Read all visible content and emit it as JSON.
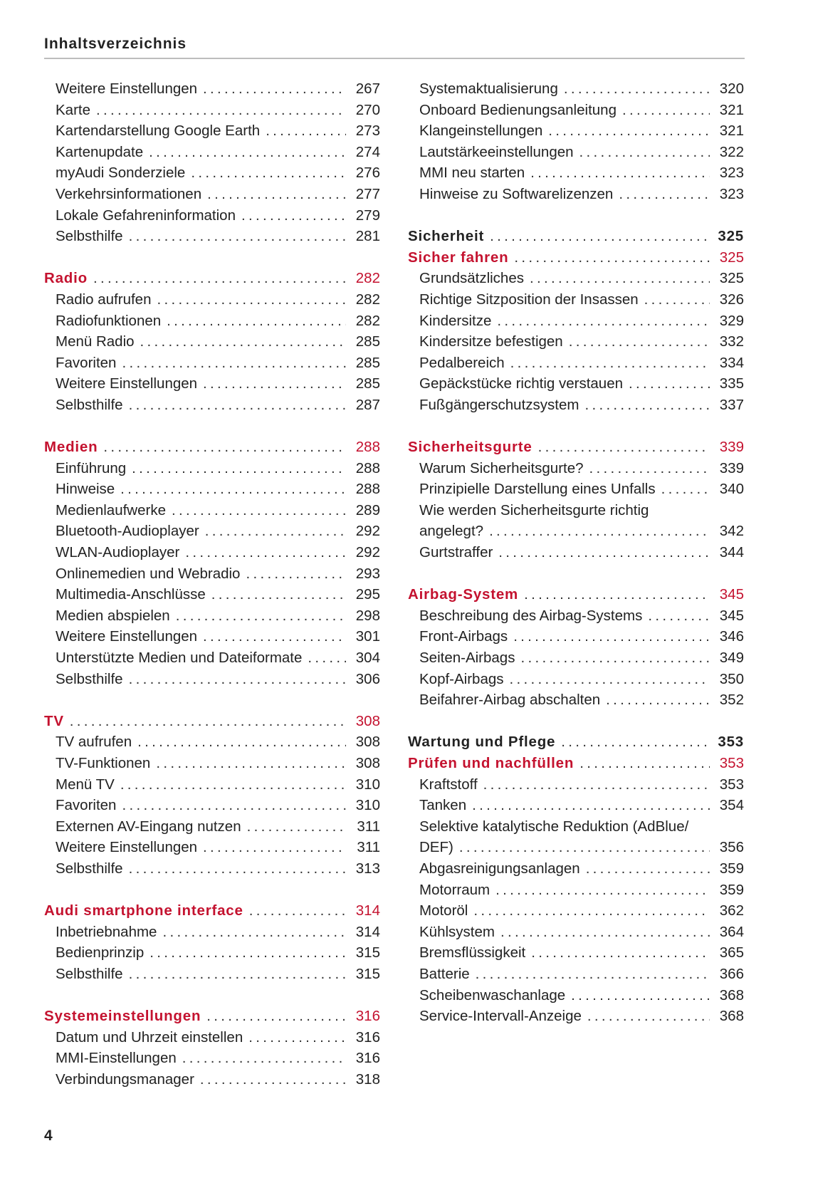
{
  "header": {
    "title": "Inhaltsverzeichnis"
  },
  "page_number": "4",
  "colors": {
    "accent": "#c4122f",
    "text": "#222222",
    "rule": "#bdbdbd"
  },
  "columns": [
    {
      "sections": [
        {
          "entries": [
            {
              "style": "item",
              "title": "Weitere Einstellungen",
              "page": "267"
            },
            {
              "style": "item",
              "title": "Karte",
              "page": "270"
            },
            {
              "style": "item",
              "title": "Kartendarstellung Google Earth",
              "page": "273"
            },
            {
              "style": "item",
              "title": "Kartenupdate",
              "page": "274"
            },
            {
              "style": "item",
              "title": "myAudi Sonderziele",
              "page": "276"
            },
            {
              "style": "item",
              "title": "Verkehrsinformationen",
              "page": "277"
            },
            {
              "style": "item",
              "title": "Lokale Gefahreninformation",
              "page": "279"
            },
            {
              "style": "item",
              "title": "Selbsthilfe",
              "page": "281"
            }
          ]
        },
        {
          "entries": [
            {
              "style": "section",
              "title": "Radio",
              "page": "282"
            },
            {
              "style": "item",
              "title": "Radio aufrufen",
              "page": "282"
            },
            {
              "style": "item",
              "title": "Radiofunktionen",
              "page": "282"
            },
            {
              "style": "item",
              "title": "Menü Radio",
              "page": "285"
            },
            {
              "style": "item",
              "title": "Favoriten",
              "page": "285"
            },
            {
              "style": "item",
              "title": "Weitere Einstellungen",
              "page": "285"
            },
            {
              "style": "item",
              "title": "Selbsthilfe",
              "page": "287"
            }
          ]
        },
        {
          "entries": [
            {
              "style": "section",
              "title": "Medien",
              "page": "288"
            },
            {
              "style": "item",
              "title": "Einführung",
              "page": "288"
            },
            {
              "style": "item",
              "title": "Hinweise",
              "page": "288"
            },
            {
              "style": "item",
              "title": "Medienlaufwerke",
              "page": "289"
            },
            {
              "style": "item",
              "title": "Bluetooth-Audioplayer",
              "page": "292"
            },
            {
              "style": "item",
              "title": "WLAN-Audioplayer",
              "page": "292"
            },
            {
              "style": "item",
              "title": "Onlinemedien und Webradio",
              "page": "293"
            },
            {
              "style": "item",
              "title": "Multimedia-Anschlüsse",
              "page": "295"
            },
            {
              "style": "item",
              "title": "Medien abspielen",
              "page": "298"
            },
            {
              "style": "item",
              "title": "Weitere Einstellungen",
              "page": "301"
            },
            {
              "style": "item",
              "title": "Unterstützte Medien und Dateiformate",
              "page": "304"
            },
            {
              "style": "item",
              "title": "Selbsthilfe",
              "page": "306"
            }
          ]
        },
        {
          "entries": [
            {
              "style": "section",
              "title": "TV",
              "page": "308"
            },
            {
              "style": "item",
              "title": "TV aufrufen",
              "page": "308"
            },
            {
              "style": "item",
              "title": "TV-Funktionen",
              "page": "308"
            },
            {
              "style": "item",
              "title": "Menü TV",
              "page": "310"
            },
            {
              "style": "item",
              "title": "Favoriten",
              "page": "310"
            },
            {
              "style": "item",
              "title": "Externen AV-Eingang nutzen",
              "page": "311"
            },
            {
              "style": "item",
              "title": "Weitere Einstellungen",
              "page": "311"
            },
            {
              "style": "item",
              "title": "Selbsthilfe",
              "page": "313"
            }
          ]
        },
        {
          "entries": [
            {
              "style": "section",
              "title": "Audi smartphone interface",
              "page": "314"
            },
            {
              "style": "item",
              "title": "Inbetriebnahme",
              "page": "314"
            },
            {
              "style": "item",
              "title": "Bedienprinzip",
              "page": "315"
            },
            {
              "style": "item",
              "title": "Selbsthilfe",
              "page": "315"
            }
          ]
        },
        {
          "entries": [
            {
              "style": "section",
              "title": "Systemeinstellungen",
              "page": "316"
            },
            {
              "style": "item",
              "title": "Datum und Uhrzeit einstellen",
              "page": "316"
            },
            {
              "style": "item",
              "title": "MMI-Einstellungen",
              "page": "316"
            },
            {
              "style": "item",
              "title": "Verbindungsmanager",
              "page": "318"
            }
          ]
        }
      ]
    },
    {
      "sections": [
        {
          "entries": [
            {
              "style": "item",
              "title": "Systemaktualisierung",
              "page": "320"
            },
            {
              "style": "item",
              "title": "Onboard Bedienungsanleitung",
              "page": "321"
            },
            {
              "style": "item",
              "title": "Klangeinstellungen",
              "page": "321"
            },
            {
              "style": "item",
              "title": "Lautstärkeeinstellungen",
              "page": "322"
            },
            {
              "style": "item",
              "title": "MMI neu starten",
              "page": "323"
            },
            {
              "style": "item",
              "title": "Hinweise zu Softwarelizenzen",
              "page": "323"
            }
          ]
        },
        {
          "entries": [
            {
              "style": "chapter",
              "title": "Sicherheit",
              "page": "325"
            },
            {
              "style": "section",
              "title": "Sicher fahren",
              "page": "325"
            },
            {
              "style": "item",
              "title": "Grundsätzliches",
              "page": "325"
            },
            {
              "style": "item",
              "title": "Richtige Sitzposition der Insassen",
              "page": "326"
            },
            {
              "style": "item",
              "title": "Kindersitze",
              "page": "329"
            },
            {
              "style": "item",
              "title": "Kindersitze befestigen",
              "page": "332"
            },
            {
              "style": "item",
              "title": "Pedalbereich",
              "page": "334"
            },
            {
              "style": "item",
              "title": "Gepäckstücke richtig verstauen",
              "page": "335"
            },
            {
              "style": "item",
              "title": "Fußgängerschutzsystem",
              "page": "337"
            }
          ]
        },
        {
          "entries": [
            {
              "style": "section",
              "title": "Sicherheitsgurte",
              "page": "339"
            },
            {
              "style": "item",
              "title": "Warum Sicherheitsgurte?",
              "page": "339"
            },
            {
              "style": "item",
              "title": "Prinzipielle Darstellung eines Unfalls",
              "page": "340"
            },
            {
              "style": "item",
              "title": "Wie werden Sicherheitsgurte richtig",
              "page": ""
            },
            {
              "style": "item",
              "title": "angelegt?",
              "page": "342"
            },
            {
              "style": "item",
              "title": "Gurtstraffer",
              "page": "344"
            }
          ]
        },
        {
          "entries": [
            {
              "style": "section",
              "title": "Airbag-System",
              "page": "345"
            },
            {
              "style": "item",
              "title": "Beschreibung des Airbag-Systems",
              "page": "345"
            },
            {
              "style": "item",
              "title": "Front-Airbags",
              "page": "346"
            },
            {
              "style": "item",
              "title": "Seiten-Airbags",
              "page": "349"
            },
            {
              "style": "item",
              "title": "Kopf-Airbags",
              "page": "350"
            },
            {
              "style": "item",
              "title": "Beifahrer-Airbag abschalten",
              "page": "352"
            }
          ]
        },
        {
          "entries": [
            {
              "style": "chapter",
              "title": "Wartung und Pflege",
              "page": "353"
            },
            {
              "style": "section",
              "title": "Prüfen und nachfüllen",
              "page": "353"
            },
            {
              "style": "item",
              "title": "Kraftstoff",
              "page": "353"
            },
            {
              "style": "item",
              "title": "Tanken",
              "page": "354"
            },
            {
              "style": "item",
              "title": "Selektive katalytische Reduktion (AdBlue/",
              "page": ""
            },
            {
              "style": "item",
              "title": "DEF)",
              "page": "356"
            },
            {
              "style": "item",
              "title": "Abgasreinigungsanlagen",
              "page": "359"
            },
            {
              "style": "item",
              "title": "Motorraum",
              "page": "359"
            },
            {
              "style": "item",
              "title": "Motoröl",
              "page": "362"
            },
            {
              "style": "item",
              "title": "Kühlsystem",
              "page": "364"
            },
            {
              "style": "item",
              "title": "Bremsflüssigkeit",
              "page": "365"
            },
            {
              "style": "item",
              "title": "Batterie",
              "page": "366"
            },
            {
              "style": "item",
              "title": "Scheibenwaschanlage",
              "page": "368"
            },
            {
              "style": "item",
              "title": "Service-Intervall-Anzeige",
              "page": "368"
            }
          ]
        }
      ]
    }
  ]
}
